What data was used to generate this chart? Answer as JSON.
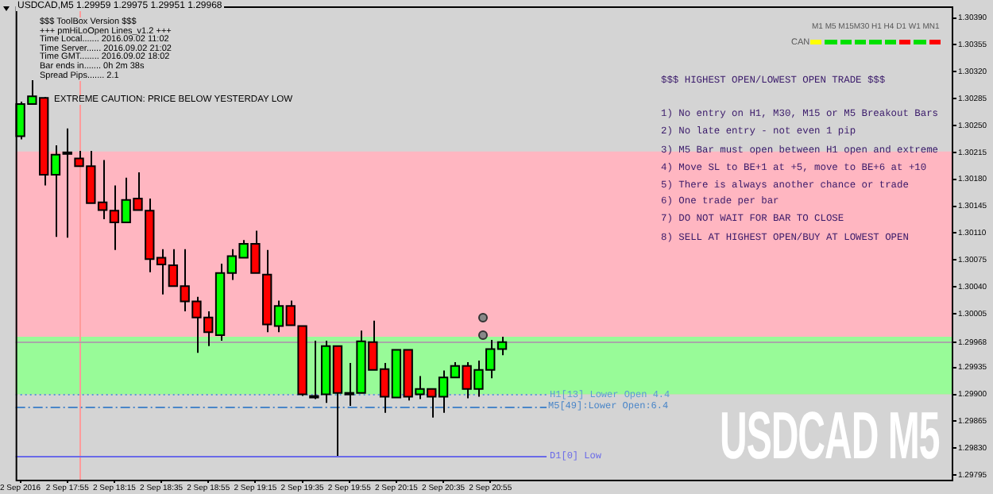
{
  "chart_data": {
    "type": "candlestick",
    "title": "USDCAD,M5  1.29959 1.29975 1.29951 1.29968",
    "x": [
      "2016-09-02T17:35",
      "2016-09-02T17:40",
      "2016-09-02T17:45",
      "2016-09-02T17:50",
      "2016-09-02T17:55",
      "2016-09-02T18:00",
      "2016-09-02T18:05",
      "2016-09-02T18:10",
      "2016-09-02T18:15",
      "2016-09-02T18:20",
      "2016-09-02T18:25",
      "2016-09-02T18:30",
      "2016-09-02T18:35",
      "2016-09-02T18:40",
      "2016-09-02T18:45",
      "2016-09-02T18:50",
      "2016-09-02T18:55",
      "2016-09-02T19:00",
      "2016-09-02T19:05",
      "2016-09-02T19:10",
      "2016-09-02T19:15",
      "2016-09-02T19:20",
      "2016-09-02T19:25",
      "2016-09-02T19:30",
      "2016-09-02T19:35",
      "2016-09-02T19:40",
      "2016-09-02T19:45",
      "2016-09-02T19:50",
      "2016-09-02T19:55",
      "2016-09-02T20:00",
      "2016-09-02T20:05",
      "2016-09-02T20:10",
      "2016-09-02T20:15",
      "2016-09-02T20:20",
      "2016-09-02T20:25",
      "2016-09-02T20:30",
      "2016-09-02T20:35",
      "2016-09-02T20:40",
      "2016-09-02T20:45",
      "2016-09-02T20:50",
      "2016-09-02T20:55",
      "2016-09-02T21:00"
    ],
    "ohlc": [
      [
        1.30236,
        1.30281,
        1.30232,
        1.30278
      ],
      [
        1.30278,
        1.30309,
        1.30278,
        1.30288
      ],
      [
        1.30286,
        1.30287,
        1.30172,
        1.30186
      ],
      [
        1.30186,
        1.30224,
        1.30105,
        1.30212
      ],
      [
        1.30215,
        1.30246,
        1.30104,
        1.30214
      ],
      [
        1.30207,
        1.30217,
        1.30197,
        1.30197
      ],
      [
        1.30197,
        1.30217,
        1.30149,
        1.30149
      ],
      [
        1.3015,
        1.30205,
        1.30128,
        1.3014
      ],
      [
        1.30139,
        1.30172,
        1.30088,
        1.30124
      ],
      [
        1.30124,
        1.30182,
        1.30124,
        1.30153
      ],
      [
        1.30155,
        1.30189,
        1.3014,
        1.3014
      ],
      [
        1.30139,
        1.30155,
        1.30059,
        1.30076
      ],
      [
        1.30078,
        1.30089,
        1.3003,
        1.30069
      ],
      [
        1.30068,
        1.30089,
        1.30041,
        1.30041
      ],
      [
        1.30041,
        1.30089,
        1.30008,
        1.30021
      ],
      [
        1.30021,
        1.30027,
        1.29954,
        1.3
      ],
      [
        1.3,
        1.30008,
        1.29963,
        1.29981
      ],
      [
        1.29977,
        1.3007,
        1.2997,
        1.30058
      ],
      [
        1.30058,
        1.30089,
        1.30049,
        1.3008
      ],
      [
        1.30078,
        1.30101,
        1.30078,
        1.30096
      ],
      [
        1.30096,
        1.30113,
        1.30058,
        1.30058
      ],
      [
        1.30056,
        1.30088,
        1.29981,
        1.29991
      ],
      [
        1.29989,
        1.30022,
        1.29981,
        1.30015
      ],
      [
        1.30015,
        1.30022,
        1.2999,
        1.2999
      ],
      [
        1.29989,
        1.29989,
        1.29898,
        1.299
      ],
      [
        1.29898,
        1.2997,
        1.29894,
        1.29897
      ],
      [
        1.299,
        1.2997,
        1.29889,
        1.29963
      ],
      [
        1.29963,
        1.29963,
        1.2982,
        1.29902
      ],
      [
        1.29902,
        1.29941,
        1.29885,
        1.29902
      ],
      [
        1.29902,
        1.29983,
        1.29902,
        1.29969
      ],
      [
        1.29968,
        1.29996,
        1.29932,
        1.29932
      ],
      [
        1.29933,
        1.29941,
        1.29876,
        1.29897
      ],
      [
        1.29896,
        1.29958,
        1.29896,
        1.29958
      ],
      [
        1.29958,
        1.29958,
        1.29892,
        1.29897
      ],
      [
        1.299,
        1.29924,
        1.29894,
        1.29907
      ],
      [
        1.29907,
        1.29907,
        1.2987,
        1.29897
      ],
      [
        1.29897,
        1.29931,
        1.29876,
        1.29922
      ],
      [
        1.29922,
        1.29942,
        1.29922,
        1.29937
      ],
      [
        1.29937,
        1.29942,
        1.29895,
        1.29907
      ],
      [
        1.29907,
        1.29944,
        1.29897,
        1.29932
      ],
      [
        1.29932,
        1.29971,
        1.29921,
        1.29959
      ],
      [
        1.29959,
        1.29975,
        1.29951,
        1.29968
      ]
    ],
    "colors": [
      "#00ff00",
      "#00ff00",
      "#ff0000",
      "#00ff00",
      "#ff0000",
      "#ff0000",
      "#ff0000",
      "#ff0000",
      "#ff0000",
      "#00ff00",
      "#ff0000",
      "#ff0000",
      "#ff0000",
      "#ff0000",
      "#ff0000",
      "#ff0000",
      "#ff0000",
      "#00ff00",
      "#00ff00",
      "#00ff00",
      "#ff0000",
      "#ff0000",
      "#00ff00",
      "#ff0000",
      "#ff0000",
      "#ff0000",
      "#00ff00",
      "#ff0000",
      "#000000",
      "#00ff00",
      "#ff0000",
      "#ff0000",
      "#00ff00",
      "#ff0000",
      "#00ff00",
      "#ff0000",
      "#00ff00",
      "#00ff00",
      "#ff0000",
      "#00ff00",
      "#00ff00",
      "#00ff00"
    ],
    "xlim": [
      "2016-09-02T17:33",
      "2016-09-03T00:12"
    ],
    "xticks": [
      {
        "value": "2016-09-02T17:35",
        "label": "2 Sep 2016"
      },
      {
        "value": "2016-09-02T17:55",
        "label": "2 Sep 17:55"
      },
      {
        "value": "2016-09-02T18:15",
        "label": "2 Sep 18:15"
      },
      {
        "value": "2016-09-02T18:35",
        "label": "2 Sep 18:35"
      },
      {
        "value": "2016-09-02T18:55",
        "label": "2 Sep 18:55"
      },
      {
        "value": "2016-09-02T19:15",
        "label": "2 Sep 19:15"
      },
      {
        "value": "2016-09-02T19:35",
        "label": "2 Sep 19:35"
      },
      {
        "value": "2016-09-02T19:55",
        "label": "2 Sep 19:55"
      },
      {
        "value": "2016-09-02T20:15",
        "label": "2 Sep 20:15"
      },
      {
        "value": "2016-09-02T20:35",
        "label": "2 Sep 20:35"
      },
      {
        "value": "2016-09-02T20:55",
        "label": "2 Sep 20:55"
      }
    ],
    "ylim": [
      1.29789,
      1.30405
    ],
    "yticks": [
      {
        "value": 1.3039,
        "label": "1.30390"
      },
      {
        "value": 1.30355,
        "label": "1.30355"
      },
      {
        "value": 1.3032,
        "label": "1.30320"
      },
      {
        "value": 1.30285,
        "label": "1.30285"
      },
      {
        "value": 1.3025,
        "label": "1.30250"
      },
      {
        "value": 1.30215,
        "label": "1.30215"
      },
      {
        "value": 1.3018,
        "label": "1.30180"
      },
      {
        "value": 1.30145,
        "label": "1.30145"
      },
      {
        "value": 1.3011,
        "label": "1.30110"
      },
      {
        "value": 1.30075,
        "label": "1.30075"
      },
      {
        "value": 1.3004,
        "label": "1.30040"
      },
      {
        "value": 1.30005,
        "label": "1.30005"
      },
      {
        "value": 1.29968,
        "label": "1.29968"
      },
      {
        "value": 1.29935,
        "label": "1.29935"
      },
      {
        "value": 1.299,
        "label": "1.29900"
      },
      {
        "value": 1.29865,
        "label": "1.29865"
      },
      {
        "value": 1.2983,
        "label": "1.29830"
      },
      {
        "value": 1.29795,
        "label": "1.29795"
      }
    ],
    "bands": [
      {
        "axis": "y",
        "from": 1.299,
        "to": 1.30216,
        "color": "#ffb6c1"
      },
      {
        "axis": "y",
        "from": 1.299,
        "to": 1.29975,
        "color": "#98fb98"
      }
    ],
    "ref_lines": [
      {
        "axis": "x",
        "value": "2016-09-02T18:00",
        "color": "#ff9a9a",
        "line_style": "solid"
      },
      {
        "axis": "y",
        "value": 1.29968,
        "color": "#a8a8a8",
        "line_style": "solid"
      },
      {
        "axis": "y",
        "value": 1.299,
        "label": "H1[13] Lower Open 4.4",
        "color": "#5b9bd5",
        "line_style": "dotted"
      },
      {
        "axis": "y",
        "value": 1.29884,
        "color": "#4a86c8",
        "line_style": "dashed"
      },
      {
        "axis": "y",
        "value": 1.2982,
        "label": "D1[0] Low",
        "color": "#6a6ae8",
        "line_style": "solid"
      }
    ],
    "annotations": [
      "$$$ ToolBox Version $$$",
      "+++ pmHiLoOpen Lines_v1.2 +++",
      "Time Local....... 2016.09.02 11:02",
      "Time Server...... 2016.09.02 21:02",
      "Time GMT........ 2016.09.02 18:02",
      "Bar ends in....... 0h 2m 38s",
      "Spread Pips....... 2.1",
      "EXTREME CAUTION: PRICE BELOW YESTERDAY LOW",
      "M1 M5 M15M30 H1 H4 D1 W1 MN1",
      "CAN",
      "$$$ HIGHEST OPEN/LOWEST OPEN TRADE $$$",
      "1) No entry on H1, M30, M15 or M5 Breakout Bars",
      "2) No late entry - not even 1 pip",
      "3) M5 Bar must open between H1 open and extreme",
      "4) Move SL to BE+1 at +5, move to BE+6 at +10",
      "5) There is always another chance or trade",
      "6) One trade per bar",
      "7) DO NOT WAIT FOR BAR TO CLOSE",
      "8) SELL AT HIGHEST OPEN/BUY AT LOWEST OPEN",
      "USDCAD M5",
      "M5[49]:Lower Open:6.4"
    ]
  }
}
